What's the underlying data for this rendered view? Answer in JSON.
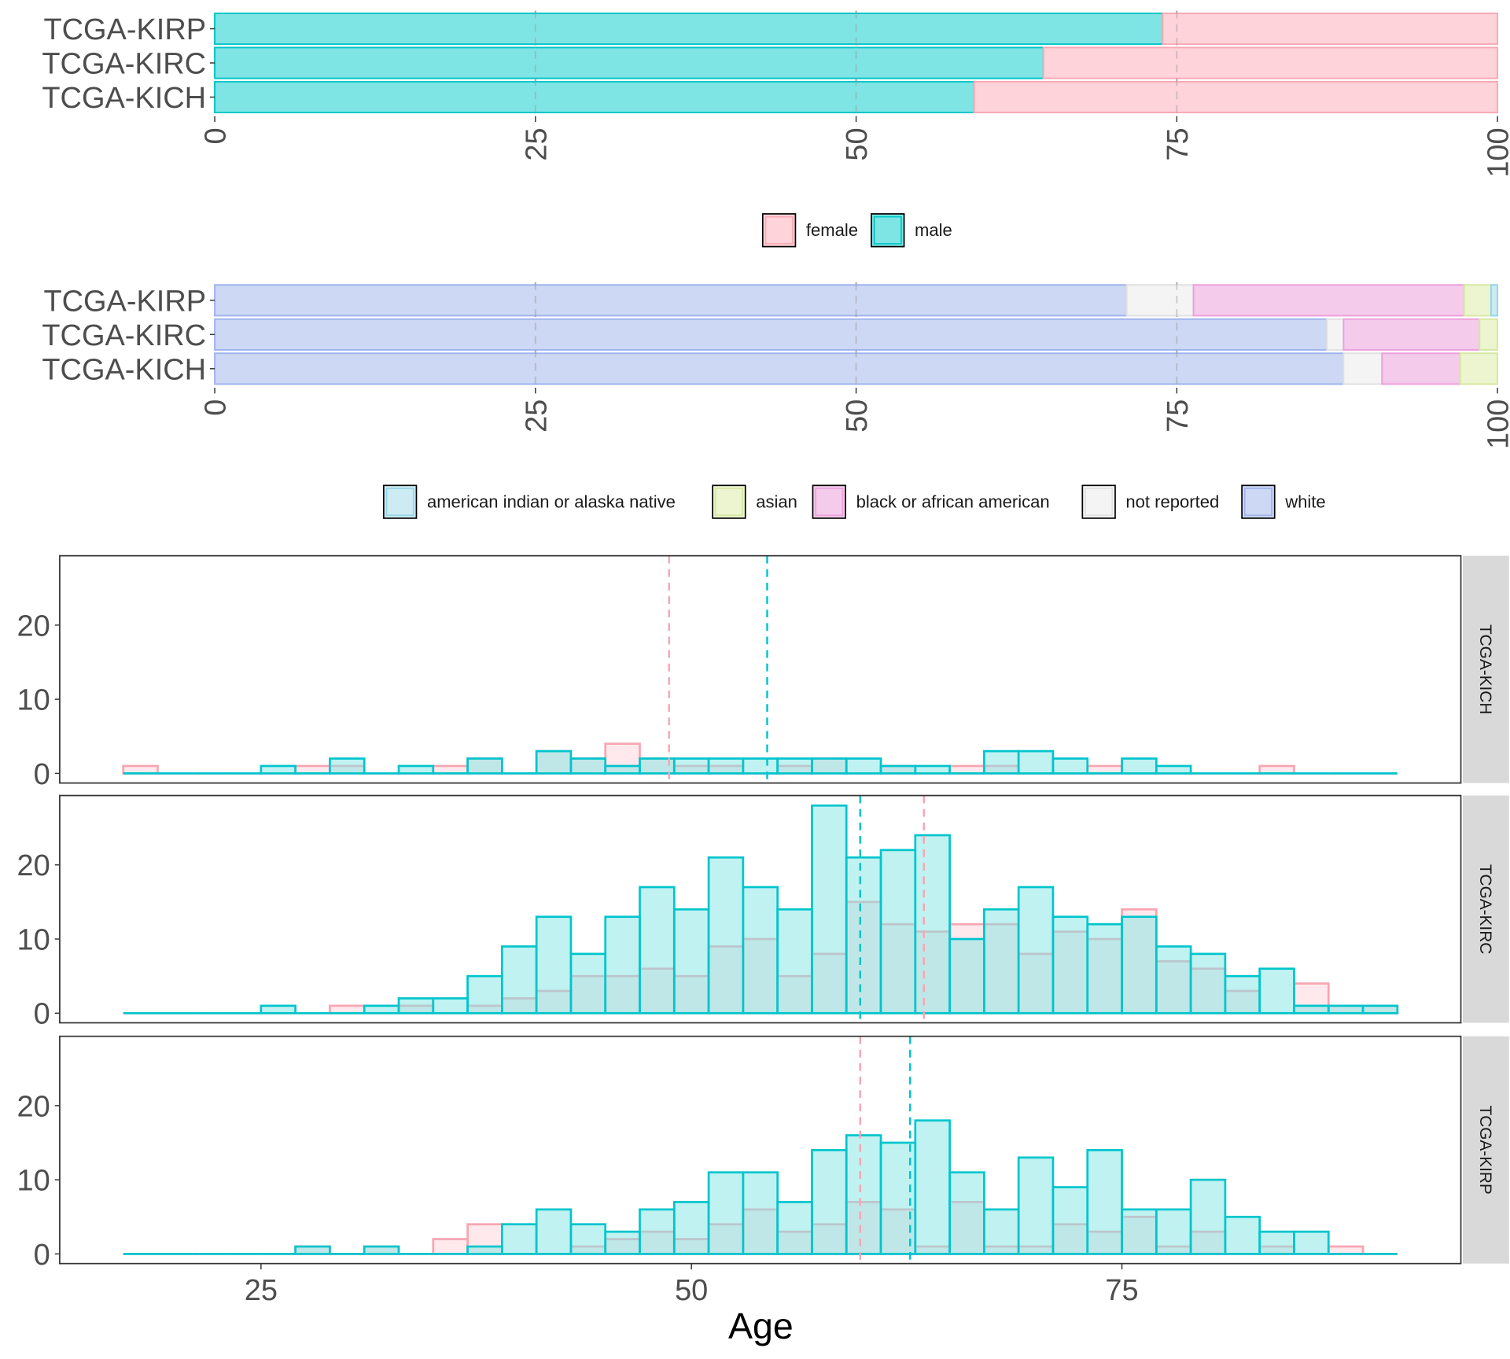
{
  "chart_data": [
    {
      "type": "bar",
      "orientation": "horizontal",
      "stacked": true,
      "title": "",
      "xlabel": "",
      "ylabel": "",
      "xlim": [
        0,
        100
      ],
      "xticks": [
        "0",
        "25",
        "50",
        "75",
        "100"
      ],
      "categories": [
        "TCGA-KIRP",
        "TCGA-KIRC",
        "TCGA-KICH"
      ],
      "series": [
        {
          "name": "male",
          "values": [
            73.9,
            64.6,
            59.2
          ],
          "fill": "#7fe5e4",
          "stroke": "#00c5c7"
        },
        {
          "name": "female",
          "values": [
            26.1,
            35.4,
            40.8
          ],
          "fill": "#ffd3da",
          "stroke": "#f9a8b4"
        }
      ],
      "grid": "dashed vertical",
      "legend": {
        "position": "bottom",
        "entries": [
          "female",
          "male"
        ]
      }
    },
    {
      "type": "bar",
      "orientation": "horizontal",
      "stacked": true,
      "title": "",
      "xlabel": "",
      "ylabel": "",
      "xlim": [
        0,
        100
      ],
      "xticks": [
        "0",
        "25",
        "50",
        "75",
        "100"
      ],
      "categories": [
        "TCGA-KIRP",
        "TCGA-KIRC",
        "TCGA-KICH"
      ],
      "series": [
        {
          "name": "white",
          "values": [
            71.1,
            86.7,
            88.0
          ],
          "fill": "#cdd8f4",
          "stroke": "#9fb3ee"
        },
        {
          "name": "not reported",
          "values": [
            5.2,
            1.3,
            3.0
          ],
          "fill": "#f4f4f4",
          "stroke": "#e0e0e0"
        },
        {
          "name": "black or african american",
          "values": [
            21.1,
            10.6,
            6.1
          ],
          "fill": "#f4cbeb",
          "stroke": "#eda0dc"
        },
        {
          "name": "asian",
          "values": [
            2.1,
            1.4,
            2.9
          ],
          "fill": "#ecf5cf",
          "stroke": "#d6e8a0"
        },
        {
          "name": "american indian or alaska native",
          "values": [
            0.5,
            0.0,
            0.0
          ],
          "fill": "#cdebf3",
          "stroke": "#93d6e8"
        }
      ],
      "grid": "dashed vertical",
      "legend": {
        "position": "bottom",
        "entries": [
          "american indian or alaska native",
          "asian",
          "black or african american",
          "not reported",
          "white"
        ]
      }
    },
    {
      "type": "histogram",
      "title": "",
      "xlabel": "Age",
      "ylabel": "",
      "xlim": [
        12,
        97
      ],
      "ylim": [
        0,
        29
      ],
      "xticks": [
        "25",
        "50",
        "75"
      ],
      "yticks": [
        "0",
        "10",
        "20"
      ],
      "bin_start": 17,
      "bin_width": 2,
      "facets": [
        {
          "label": "TCGA-KICH",
          "female": [
            1,
            0,
            0,
            0,
            0,
            1,
            1,
            0,
            0,
            1,
            2,
            0,
            3,
            2,
            4,
            2,
            1,
            1,
            0,
            1,
            2,
            0,
            1,
            0,
            1,
            1,
            0,
            0,
            1,
            0,
            0,
            0,
            0,
            1,
            0,
            0,
            0
          ],
          "male": [
            0,
            0,
            0,
            0,
            1,
            0,
            2,
            0,
            1,
            0,
            2,
            0,
            3,
            2,
            1,
            2,
            2,
            2,
            2,
            2,
            2,
            2,
            1,
            1,
            0,
            3,
            3,
            2,
            0,
            2,
            1,
            0,
            0,
            0,
            0,
            0,
            0
          ],
          "median_female": 48.7,
          "median_male": 54.4
        },
        {
          "label": "TCGA-KIRC",
          "female": [
            0,
            0,
            0,
            0,
            0,
            0,
            1,
            0,
            1,
            0,
            1,
            2,
            3,
            5,
            5,
            6,
            5,
            9,
            10,
            5,
            8,
            15,
            12,
            11,
            12,
            12,
            8,
            11,
            10,
            14,
            7,
            6,
            3,
            0,
            4,
            1,
            1
          ],
          "male": [
            0,
            0,
            0,
            0,
            1,
            0,
            0,
            1,
            2,
            2,
            5,
            9,
            13,
            8,
            13,
            17,
            14,
            21,
            17,
            14,
            28,
            21,
            22,
            24,
            10,
            14,
            17,
            13,
            12,
            13,
            9,
            8,
            5,
            6,
            1,
            1,
            1
          ],
          "median_female": 63.5,
          "median_male": 59.8
        },
        {
          "label": "TCGA-KIRP",
          "female": [
            0,
            0,
            0,
            0,
            0,
            1,
            0,
            1,
            0,
            2,
            4,
            0,
            0,
            1,
            2,
            3,
            2,
            4,
            6,
            3,
            4,
            7,
            6,
            1,
            7,
            1,
            1,
            4,
            3,
            5,
            1,
            3,
            0,
            1,
            0,
            1,
            0
          ],
          "male": [
            0,
            0,
            0,
            0,
            0,
            1,
            0,
            1,
            0,
            0,
            1,
            4,
            6,
            4,
            3,
            6,
            7,
            11,
            11,
            7,
            14,
            16,
            15,
            18,
            11,
            6,
            13,
            9,
            14,
            6,
            6,
            10,
            5,
            3,
            3,
            0,
            0
          ],
          "median_female": 59.8,
          "median_male": 62.7
        }
      ],
      "colors": {
        "female": "#f8a5b2",
        "male": "#00c5cd"
      },
      "legend": "none"
    }
  ]
}
